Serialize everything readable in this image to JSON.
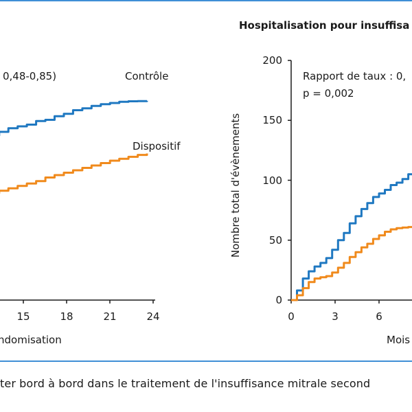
{
  "colors": {
    "frame": "#3f8fd6",
    "control": "#1f78c1",
    "device": "#f08a1c"
  },
  "caption": "ter bord à bord dans le traitement de l'insuffisance mitrale second",
  "chart_data": [
    {
      "type": "line",
      "title": "",
      "xlabel": "ndomisation",
      "ylabel": "",
      "xlim": [
        6,
        25
      ],
      "ylim": [
        0,
        100
      ],
      "x_ticks": [
        15,
        18,
        21,
        24
      ],
      "y_ticks": [],
      "grid": false,
      "annotation_lines": [
        "0,48-0,85)"
      ],
      "series": [
        {
          "name": "Contrôle",
          "color": "#1f78c1",
          "x": [
            6,
            6.6,
            7.2,
            7.8,
            8.4,
            9.0,
            9.6,
            10.2,
            10.8,
            11.4,
            12.0,
            12.6,
            13.2,
            13.8,
            14.4,
            15.0,
            15.6,
            16.2,
            16.8,
            17.4,
            18.0,
            18.6,
            19.2,
            19.8,
            20.4,
            21.0,
            21.6,
            22.2,
            22.8,
            23.4,
            24.0,
            24.6
          ],
          "y": [
            53.5,
            55.0,
            56.0,
            56.8,
            58.0,
            59.0,
            60.5,
            61.5,
            62.0,
            63.5,
            64.5,
            65.2,
            66.5,
            67.5,
            68.5,
            70.0,
            71.5,
            72.3,
            73.0,
            74.5,
            75.0,
            76.5,
            77.5,
            79.0,
            79.8,
            80.8,
            81.5,
            82.0,
            82.5,
            82.7,
            82.8,
            82.9
          ]
        },
        {
          "name": "Dispositif",
          "color": "#f08a1c",
          "x": [
            6,
            7.2,
            8.4,
            9.6,
            10.8,
            12.0,
            13.2,
            14.4,
            15.0,
            15.6,
            16.2,
            16.8,
            17.4,
            18.0,
            18.6,
            19.2,
            19.8,
            20.4,
            21.0,
            21.6,
            22.2,
            22.8,
            23.4,
            24.0,
            24.6
          ],
          "y": [
            38.0,
            38.5,
            39.5,
            40.5,
            41.5,
            42.5,
            43.5,
            44.5,
            45.5,
            46.5,
            47.5,
            48.5,
            49.5,
            51.0,
            52.0,
            53.0,
            54.0,
            55.0,
            56.0,
            57.0,
            58.0,
            58.8,
            59.6,
            60.4,
            61.0
          ]
        }
      ]
    },
    {
      "type": "line",
      "title": "Hospitalisation pour insuffisa",
      "xlabel": "Mois",
      "ylabel": "Nombre total d'évènements",
      "xlim": [
        0,
        10
      ],
      "ylim": [
        0,
        200
      ],
      "x_ticks": [
        0,
        3,
        6
      ],
      "y_ticks": [
        0,
        50,
        100,
        150,
        200
      ],
      "grid": false,
      "annotation_lines": [
        "Rapport de taux : 0,",
        "p = 0,002"
      ],
      "series": [
        {
          "name": "",
          "color": "#1f78c1",
          "x": [
            0,
            0.4,
            0.8,
            1.2,
            1.6,
            2.0,
            2.4,
            2.8,
            3.2,
            3.6,
            4.0,
            4.4,
            4.8,
            5.2,
            5.6,
            6.0,
            6.4,
            6.8,
            7.2,
            7.6,
            8.0,
            8.4
          ],
          "y": [
            0,
            8,
            18,
            24,
            28,
            31,
            35,
            42,
            50,
            56,
            64,
            70,
            76,
            81,
            86,
            89,
            92,
            96,
            98,
            101,
            105,
            109
          ]
        },
        {
          "name": "",
          "color": "#f08a1c",
          "x": [
            0,
            0.4,
            0.8,
            1.2,
            1.6,
            2.0,
            2.4,
            2.8,
            3.2,
            3.6,
            4.0,
            4.4,
            4.8,
            5.2,
            5.6,
            6.0,
            6.4,
            6.8,
            7.2,
            7.6,
            8.0,
            8.4
          ],
          "y": [
            0,
            4,
            10,
            15,
            18,
            19,
            20,
            23,
            27,
            31,
            36,
            40,
            44,
            47,
            51,
            54,
            57,
            59,
            60,
            60.5,
            61,
            61
          ]
        }
      ]
    }
  ]
}
